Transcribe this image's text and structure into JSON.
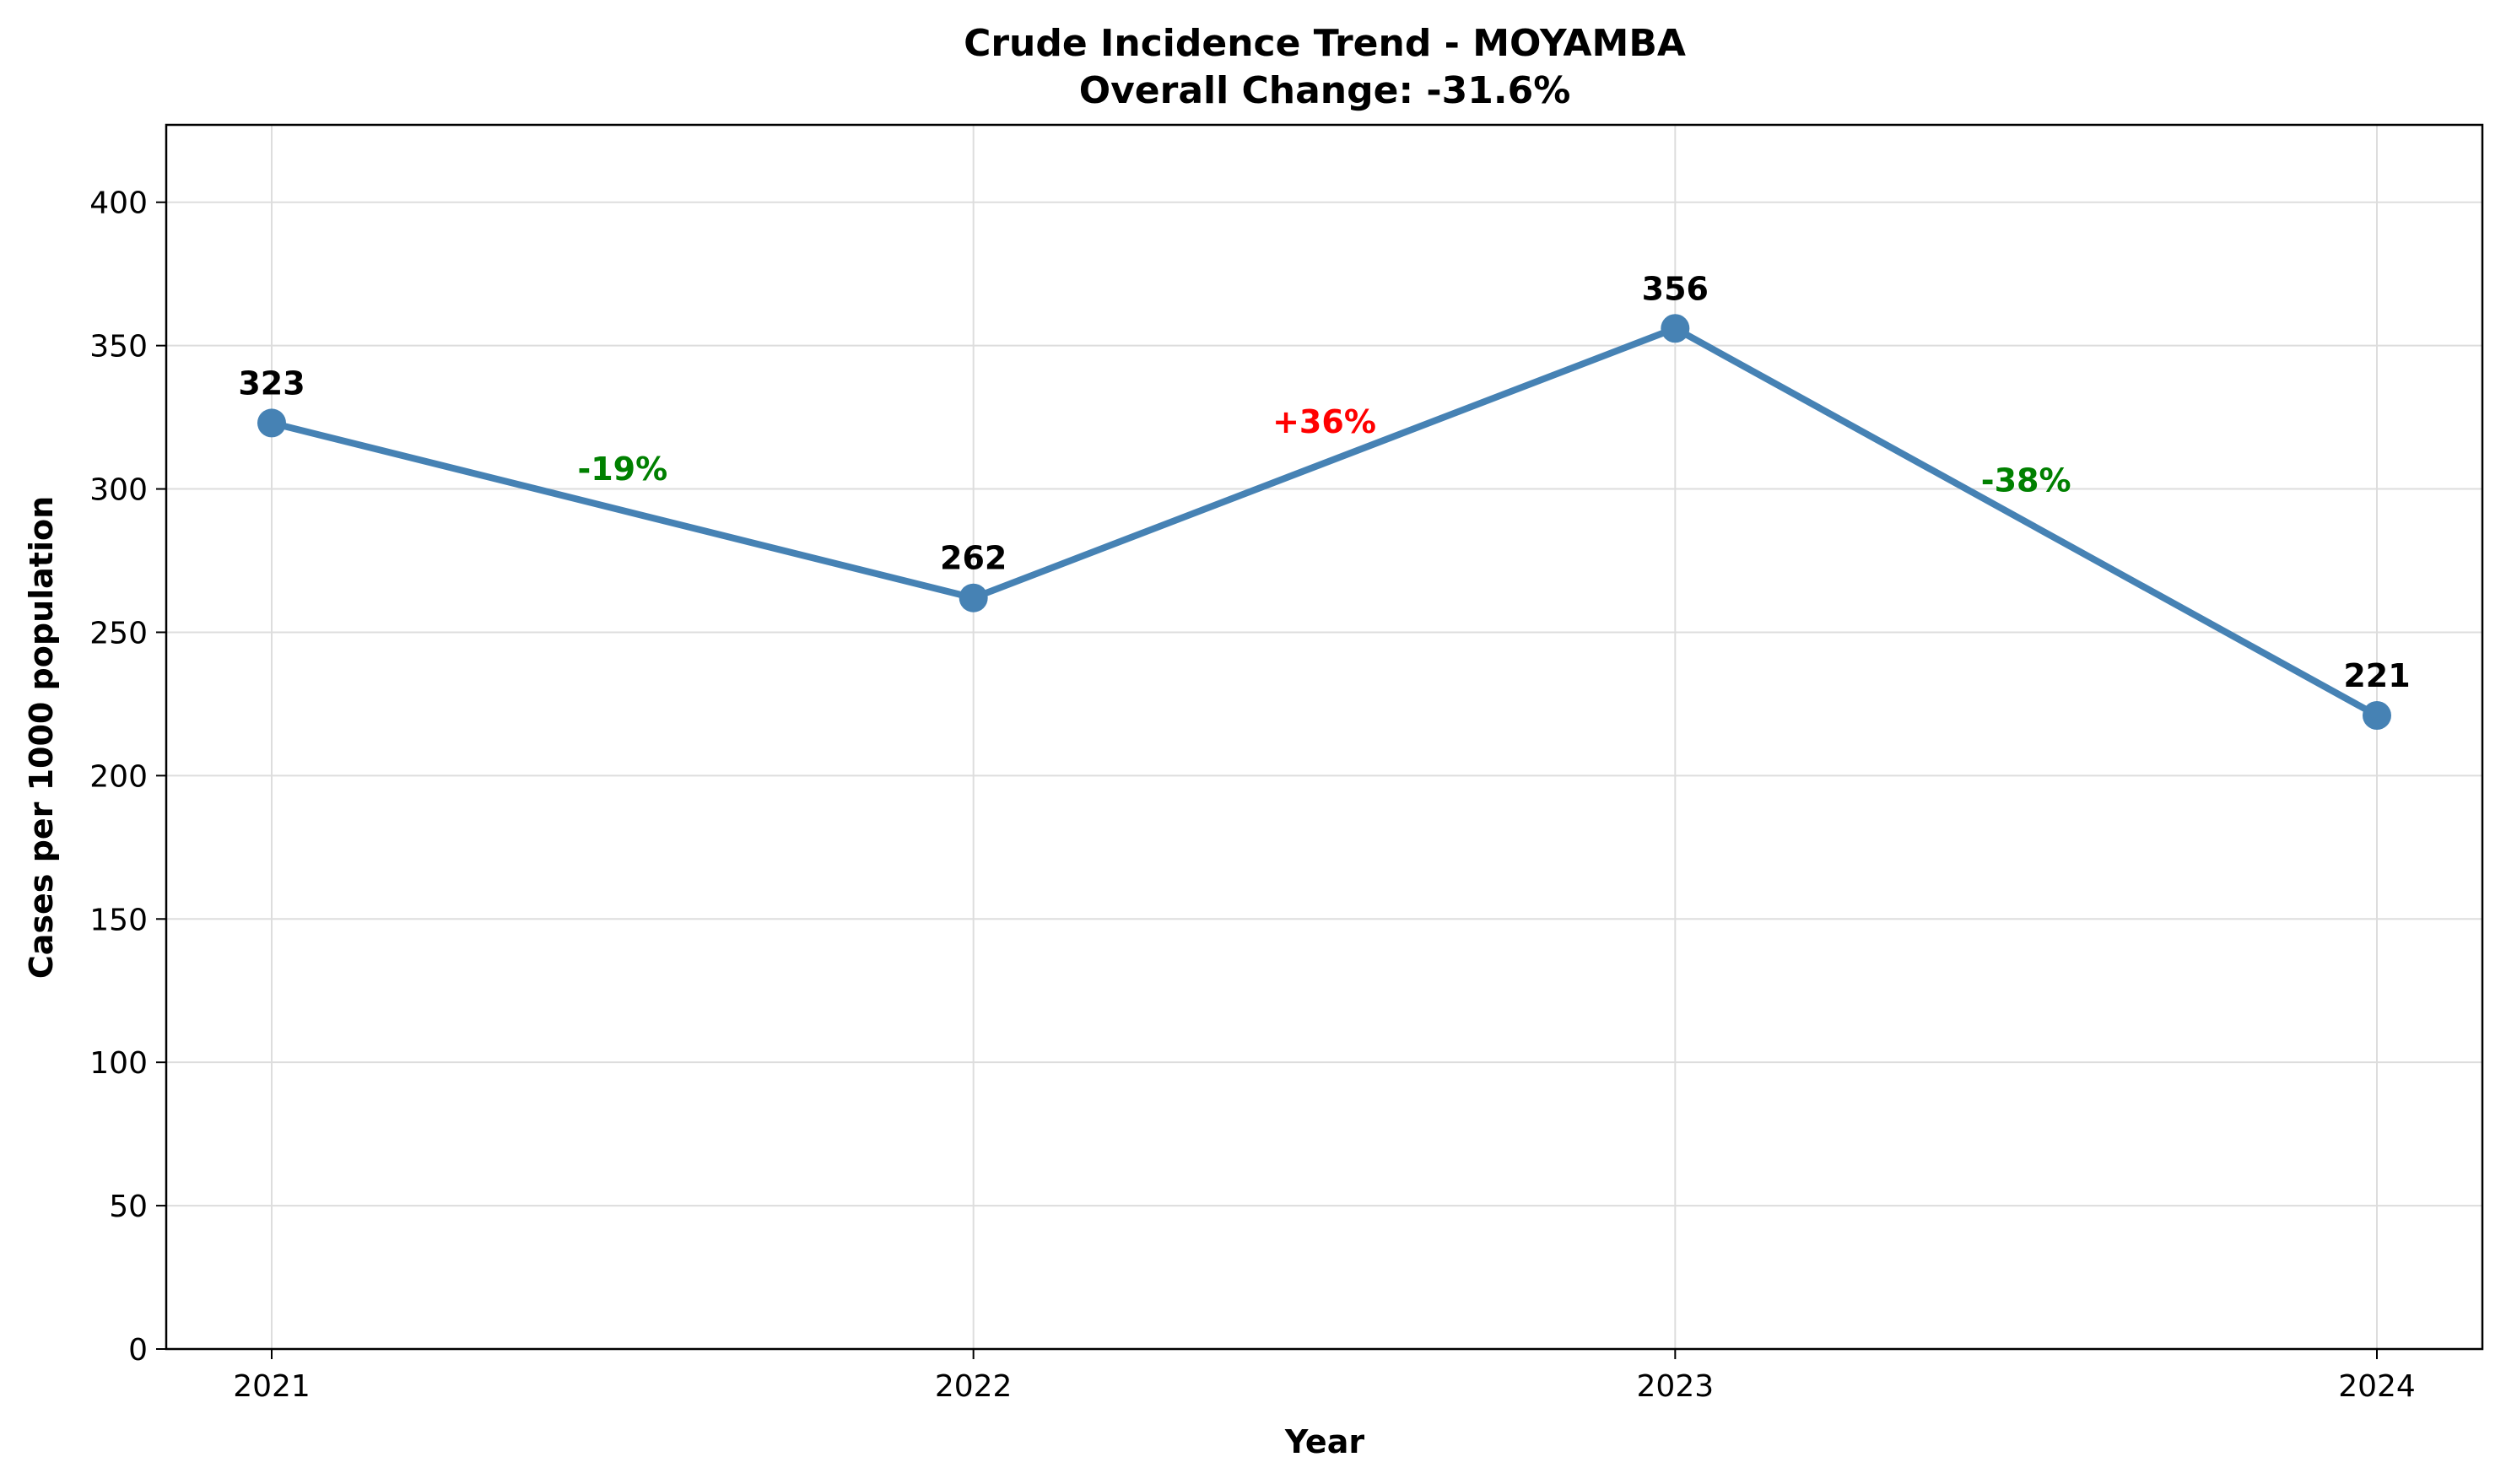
{
  "chart_data": {
    "type": "line",
    "title": "Crude Incidence Trend - MOYAMBA",
    "subtitle": "Overall Change: -31.6%",
    "xlabel": "Year",
    "ylabel": "Cases per 1000 population",
    "x": [
      "2021",
      "2022",
      "2023",
      "2024"
    ],
    "series": [
      {
        "values": [
          323,
          262,
          356,
          221
        ],
        "color": "#4682b4"
      }
    ],
    "data_labels": [
      "323",
      "262",
      "356",
      "221"
    ],
    "change_labels": [
      {
        "text": "-19%",
        "color": "#008000"
      },
      {
        "text": "+36%",
        "color": "#ff0000"
      },
      {
        "text": "-38%",
        "color": "#008000"
      }
    ],
    "yticks": [
      0,
      50,
      100,
      150,
      200,
      250,
      300,
      350,
      400
    ],
    "ytick_labels": [
      "0",
      "50",
      "100",
      "150",
      "200",
      "250",
      "300",
      "350",
      "400"
    ],
    "ylim": [
      0,
      427
    ],
    "grid": true,
    "legend": false
  }
}
